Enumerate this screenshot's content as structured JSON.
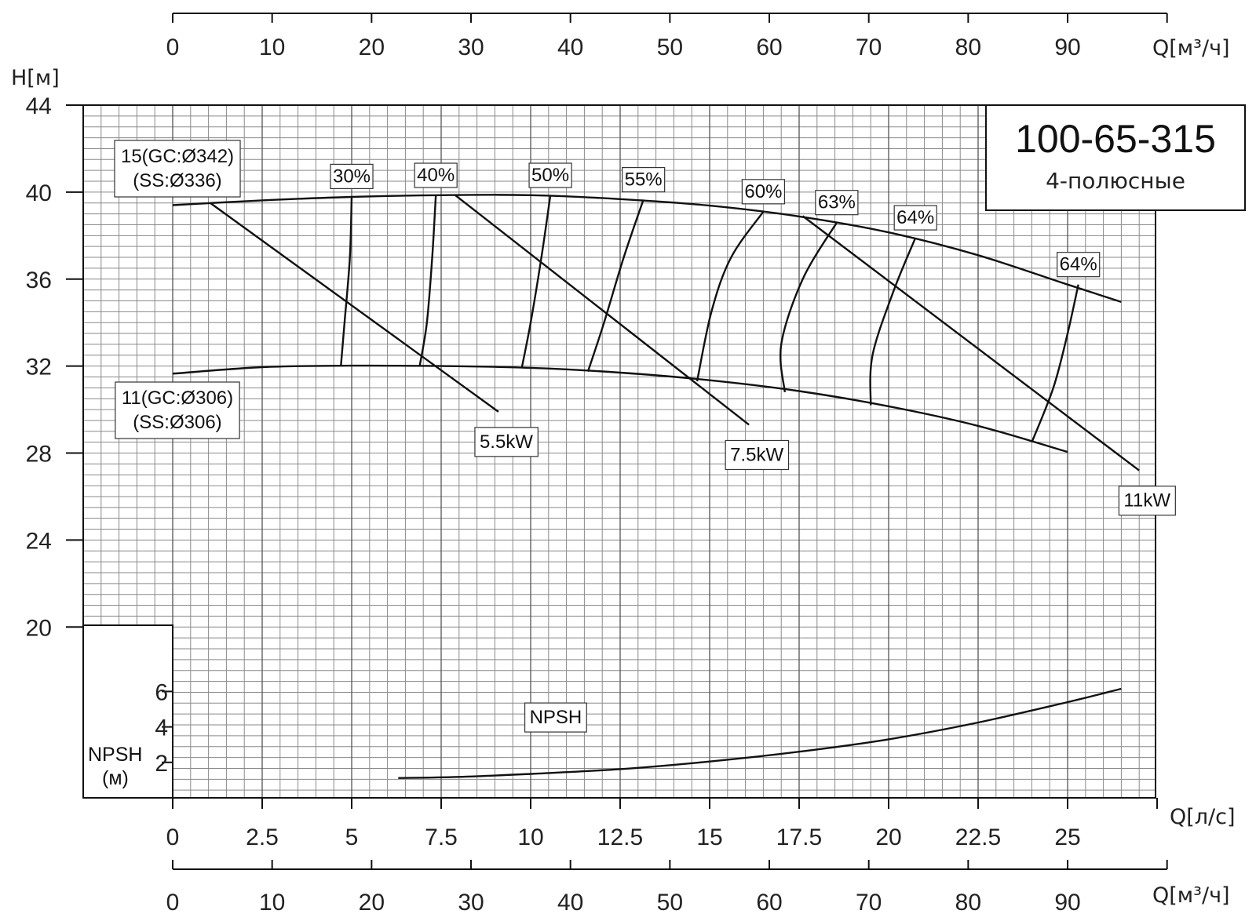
{
  "chart_data": {
    "type": "line",
    "title": "100-65-315",
    "subtitle": "4-полюсные",
    "xlabel_bottom": "Q[л/с]",
    "xlabel_m3h": "Q[м³/ч]",
    "ylabel": "H[м]",
    "npsh_label_1": "NPSH",
    "npsh_label_2": "(м)",
    "x_ls_ticks": [
      "0",
      "2.5",
      "5",
      "7.5",
      "10",
      "12.5",
      "15",
      "17.5",
      "20",
      "22.5",
      "25"
    ],
    "x_m3h_ticks": [
      "0",
      "10",
      "20",
      "30",
      "40",
      "50",
      "60",
      "70",
      "80",
      "90"
    ],
    "y_ticks": [
      "20",
      "24",
      "28",
      "32",
      "36",
      "40",
      "44"
    ],
    "npsh_ticks": [
      "2",
      "4",
      "6"
    ],
    "xlim_ls": [
      0,
      27.8
    ],
    "ylim": [
      20,
      44
    ],
    "npsh_range": [
      0,
      7
    ],
    "grid": true,
    "impellers": [
      {
        "line1": "15(GC:Ø342)",
        "line2": "(SS:Ø336)",
        "x": [
          0,
          2.5,
          5,
          7.5,
          10,
          12.5,
          15,
          17.5,
          20,
          22.5,
          25,
          26.5
        ],
        "y": [
          39.4,
          39.62,
          39.78,
          39.86,
          39.86,
          39.68,
          39.38,
          38.88,
          38.15,
          37.1,
          35.75,
          34.95
        ]
      },
      {
        "line1": "11(GC:Ø306)",
        "line2": "(SS:Ø306)",
        "x": [
          0,
          2.5,
          5,
          7.5,
          10,
          12.5,
          15,
          17.5,
          20,
          22.5,
          25
        ],
        "y": [
          31.65,
          31.95,
          32.02,
          32.0,
          31.92,
          31.7,
          31.35,
          30.85,
          30.15,
          29.25,
          28.05
        ]
      }
    ],
    "efficiency_lines": [
      {
        "label": "30%",
        "x": [
          5.0,
          4.95,
          4.8,
          4.7
        ],
        "y": [
          39.8,
          37.0,
          34.0,
          32.02
        ]
      },
      {
        "label": "40%",
        "x": [
          7.35,
          7.25,
          7.1,
          6.9
        ],
        "y": [
          39.85,
          37.0,
          34.0,
          32.0
        ]
      },
      {
        "label": "50%",
        "x": [
          10.55,
          10.3,
          10.0,
          9.75
        ],
        "y": [
          39.85,
          37.0,
          34.0,
          31.9
        ]
      },
      {
        "label": "55%",
        "x": [
          13.15,
          12.6,
          12.05,
          11.6
        ],
        "y": [
          39.65,
          37.0,
          34.0,
          31.75
        ]
      },
      {
        "label": "60%",
        "x": [
          16.5,
          15.6,
          15.05,
          14.65
        ],
        "y": [
          39.1,
          37.0,
          34.5,
          31.3
        ]
      },
      {
        "label": "63%",
        "x": [
          18.55,
          17.6,
          17.0,
          17.1
        ],
        "y": [
          38.6,
          36.0,
          33.0,
          30.8
        ]
      },
      {
        "label": "64%",
        "x": [
          20.75,
          20.15,
          19.55,
          19.5
        ],
        "y": [
          37.9,
          35.5,
          32.5,
          30.2
        ]
      },
      {
        "label": "64%",
        "x": [
          25.3,
          25.0,
          24.6,
          24.0
        ],
        "y": [
          35.75,
          33.5,
          31.0,
          28.5
        ]
      }
    ],
    "power_lines": [
      {
        "label": "5.5kW",
        "x": [
          1.05,
          9.1
        ],
        "y": [
          39.5,
          29.9
        ]
      },
      {
        "label": "7.5kW",
        "x": [
          7.9,
          16.1
        ],
        "y": [
          39.85,
          29.3
        ]
      },
      {
        "label": "11kW",
        "x": [
          17.6,
          27.0
        ],
        "y": [
          38.9,
          27.2
        ]
      }
    ],
    "npsh_curve": {
      "label": "NPSH",
      "x": [
        6.3,
        8,
        10,
        12.5,
        15,
        17.5,
        20,
        22.5,
        25,
        26.5
      ],
      "y": [
        1.12,
        1.18,
        1.35,
        1.62,
        2.05,
        2.6,
        3.3,
        4.25,
        5.4,
        6.15
      ]
    }
  }
}
